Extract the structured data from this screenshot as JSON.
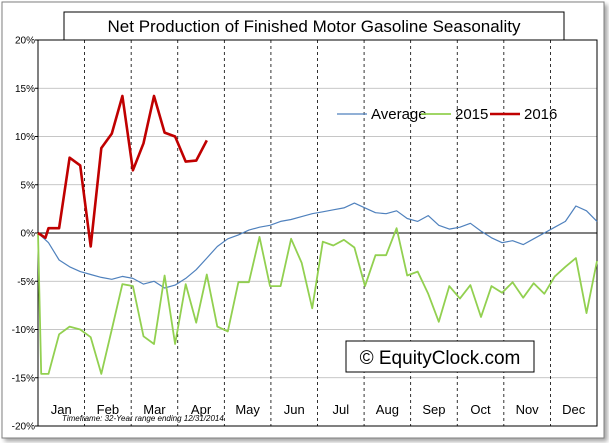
{
  "chart_data": {
    "type": "line",
    "title": "Net Production of Finished Motor Gasoline Seasonality",
    "watermark": "© EquityClock.com",
    "footnote": "Timeframe: 32-Year range ending 12/31/2014",
    "x_months": [
      "Jan",
      "Feb",
      "Mar",
      "Apr",
      "May",
      "Jun",
      "Jul",
      "Aug",
      "Sep",
      "Oct",
      "Nov",
      "Dec"
    ],
    "y_ticks": [
      "20%",
      "15%",
      "10%",
      "5%",
      "0%",
      "-5%",
      "-10%",
      "-15%",
      "-20%"
    ],
    "ylim": [
      -20,
      20
    ],
    "xlim": [
      0,
      53
    ],
    "x_unit": "week of year",
    "grid": true,
    "legend_position": "top-right",
    "series": [
      {
        "name": "Average",
        "color": "#4f81bd",
        "x": [
          0,
          1,
          2,
          3,
          4,
          5,
          6,
          7,
          8,
          9,
          10,
          11,
          12,
          13,
          14,
          15,
          16,
          17,
          18,
          19,
          20,
          21,
          22,
          23,
          24,
          25,
          26,
          27,
          28,
          29,
          30,
          31,
          32,
          33,
          34,
          35,
          36,
          37,
          38,
          39,
          40,
          41,
          42,
          43,
          44,
          45,
          46,
          47,
          48,
          49,
          50,
          51,
          52,
          53
        ],
        "values": [
          0,
          -1.0,
          -2.8,
          -3.5,
          -4.0,
          -4.3,
          -4.6,
          -4.8,
          -4.5,
          -4.7,
          -5.3,
          -5.0,
          -5.7,
          -5.4,
          -4.7,
          -3.8,
          -2.6,
          -1.4,
          -0.6,
          -0.2,
          0.3,
          0.6,
          0.8,
          1.2,
          1.4,
          1.7,
          2.0,
          2.2,
          2.4,
          2.6,
          3.1,
          2.6,
          2.1,
          2.0,
          2.3,
          1.5,
          1.2,
          1.8,
          0.8,
          0.4,
          0.6,
          1.0,
          0.2,
          -0.5,
          -1.0,
          -0.8,
          -1.2,
          -0.6,
          0,
          0.6,
          1.2,
          2.8,
          2.3,
          1.2
        ]
      },
      {
        "name": "2015",
        "color": "#92d050",
        "x": [
          0,
          0.3,
          1,
          2,
          3,
          4,
          5,
          6,
          7,
          8,
          9,
          10,
          11,
          12,
          13,
          14,
          15,
          16,
          17,
          18,
          19,
          20,
          21,
          22,
          23,
          24,
          25,
          26,
          27,
          28,
          29,
          30,
          31,
          32,
          33,
          34,
          35,
          36,
          37,
          38,
          39,
          40,
          41,
          42,
          43,
          44,
          45,
          46,
          47,
          48,
          49,
          50,
          51,
          52,
          53
        ],
        "values": [
          0,
          -14.6,
          -14.6,
          -10.5,
          -9.7,
          -10.0,
          -10.8,
          -14.6,
          -10.0,
          -5.3,
          -5.5,
          -10.7,
          -11.5,
          -4.4,
          -11.5,
          -5.3,
          -9.3,
          -4.3,
          -9.7,
          -10.2,
          -5.1,
          -5.1,
          -0.4,
          -5.5,
          -5.5,
          -0.6,
          -3.1,
          -7.8,
          -0.9,
          -1.3,
          -0.7,
          -1.5,
          -5.5,
          -2.3,
          -2.3,
          0.5,
          -4.4,
          -4.0,
          -6.3,
          -9.2,
          -5.5,
          -6.8,
          -5.4,
          -8.7,
          -5.5,
          -6.2,
          -5.1,
          -6.7,
          -5.2,
          -6.3,
          -4.5,
          -3.5,
          -2.6,
          -8.3,
          -2.9
        ]
      },
      {
        "name": "2016",
        "color": "#c00000",
        "x": [
          0,
          0.7,
          1,
          2,
          3,
          4,
          5,
          6,
          7,
          8,
          9,
          10,
          11,
          12,
          13,
          14,
          15,
          16
        ],
        "values": [
          0,
          -0.5,
          0.5,
          0.5,
          7.8,
          7.0,
          -1.4,
          8.8,
          10.3,
          14.2,
          6.5,
          9.3,
          14.2,
          10.4,
          10.0,
          7.4,
          7.5,
          9.6
        ]
      }
    ]
  }
}
